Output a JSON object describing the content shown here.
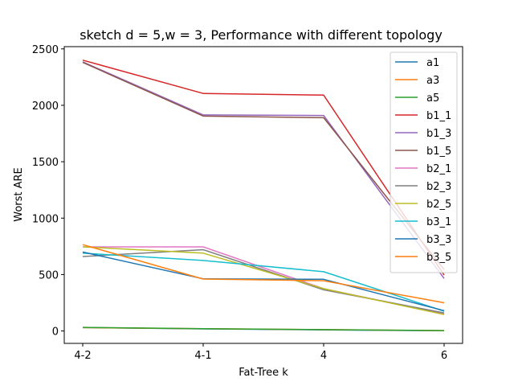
{
  "chart_data": {
    "type": "line",
    "title": "sketch d = 5,w = 3, Performance with different topology",
    "xlabel": "Fat-Tree k",
    "ylabel": "Worst ARE",
    "categories": [
      "4-2",
      "4-1",
      "4",
      "6"
    ],
    "ylim": [
      -110,
      2520
    ],
    "yticks": [
      0,
      500,
      1000,
      1500,
      2000,
      2500
    ],
    "grid": false,
    "legend_position": "top-right",
    "series": [
      {
        "name": "a1",
        "color": "#1f77b4",
        "values": [
          30,
          18,
          10,
          2
        ]
      },
      {
        "name": "a3",
        "color": "#ff7f0e",
        "values": [
          30,
          20,
          12,
          3
        ]
      },
      {
        "name": "a5",
        "color": "#2ca02c",
        "values": [
          32,
          20,
          12,
          3
        ]
      },
      {
        "name": "b1_1",
        "color": "#d62728",
        "values": [
          2400,
          2105,
          2090,
          495
        ]
      },
      {
        "name": "b1_3",
        "color": "#9467bd",
        "values": [
          2385,
          1915,
          1910,
          465
        ]
      },
      {
        "name": "b1_5",
        "color": "#8c564b",
        "values": [
          2380,
          1905,
          1890,
          545
        ]
      },
      {
        "name": "b2_1",
        "color": "#e377c2",
        "values": [
          745,
          745,
          375,
          150
        ]
      },
      {
        "name": "b2_3",
        "color": "#7f7f7f",
        "values": [
          660,
          720,
          365,
          160
        ]
      },
      {
        "name": "b2_5",
        "color": "#bcbd22",
        "values": [
          745,
          690,
          375,
          145
        ]
      },
      {
        "name": "b3_1",
        "color": "#17becf",
        "values": [
          690,
          625,
          525,
          175
        ]
      },
      {
        "name": "b3_3",
        "color": "#1f77b4",
        "values": [
          700,
          462,
          458,
          180
        ]
      },
      {
        "name": "b3_5",
        "color": "#ff7f0e",
        "values": [
          765,
          460,
          445,
          250
        ]
      }
    ]
  }
}
